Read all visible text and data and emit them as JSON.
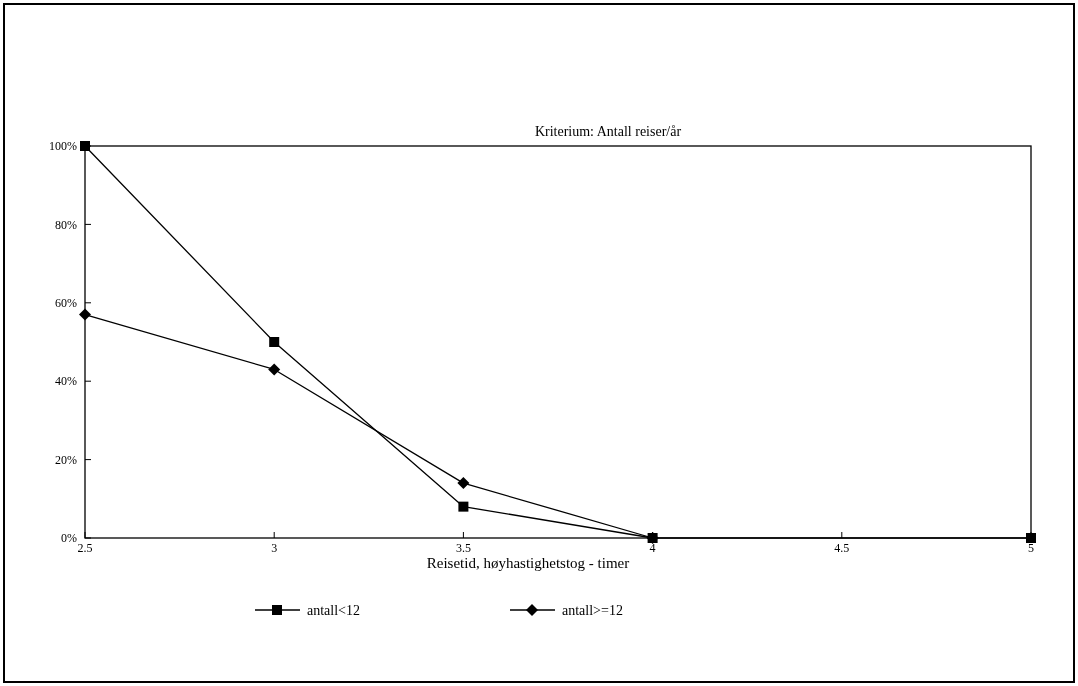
{
  "chart_data": {
    "type": "line",
    "title": "Kriterium: Antall reiser/år",
    "xlabel": "Reisetid, høyhastighetstog - timer",
    "x": [
      2.5,
      3,
      3.5,
      4,
      5
    ],
    "series": [
      {
        "name": "antall<12",
        "color": "#000000",
        "marker": "square",
        "values": [
          100,
          50,
          8,
          0,
          0
        ]
      },
      {
        "name": "antall>=12",
        "color": "#000000",
        "marker": "diamond",
        "values": [
          57,
          43,
          14,
          0,
          null
        ]
      }
    ],
    "xlim": [
      2.5,
      5
    ],
    "xticks": [
      2.5,
      3,
      3.5,
      4,
      4.5,
      5
    ],
    "ylim": [
      0,
      100
    ],
    "yticks": [
      {
        "value": 0,
        "label": "0%"
      },
      {
        "value": 20,
        "label": "20%"
      },
      {
        "value": 40,
        "label": "40%"
      },
      {
        "value": 60,
        "label": "60%"
      },
      {
        "value": 80,
        "label": "80%"
      },
      {
        "value": 100,
        "label": "100%"
      }
    ],
    "grid": false,
    "legend": "bottom",
    "line_style": "solid"
  }
}
